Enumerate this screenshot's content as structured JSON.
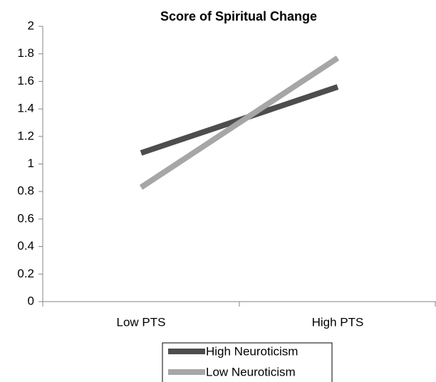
{
  "chart_data": {
    "type": "line",
    "title": "Score of Spiritual Change",
    "categories": [
      "Low PTS",
      "High PTS"
    ],
    "series": [
      {
        "name": "High Neuroticism",
        "color": "#4d4d4d",
        "values": [
          1.08,
          1.56
        ]
      },
      {
        "name": "Low Neuroticism",
        "color": "#a6a6a6",
        "values": [
          0.83,
          1.77
        ]
      }
    ],
    "ylim": [
      0,
      2
    ],
    "yticks": [
      0,
      0.2,
      0.4,
      0.6,
      0.8,
      1,
      1.2,
      1.4,
      1.6,
      1.8,
      2
    ],
    "grid": false,
    "legend": "bottom"
  }
}
